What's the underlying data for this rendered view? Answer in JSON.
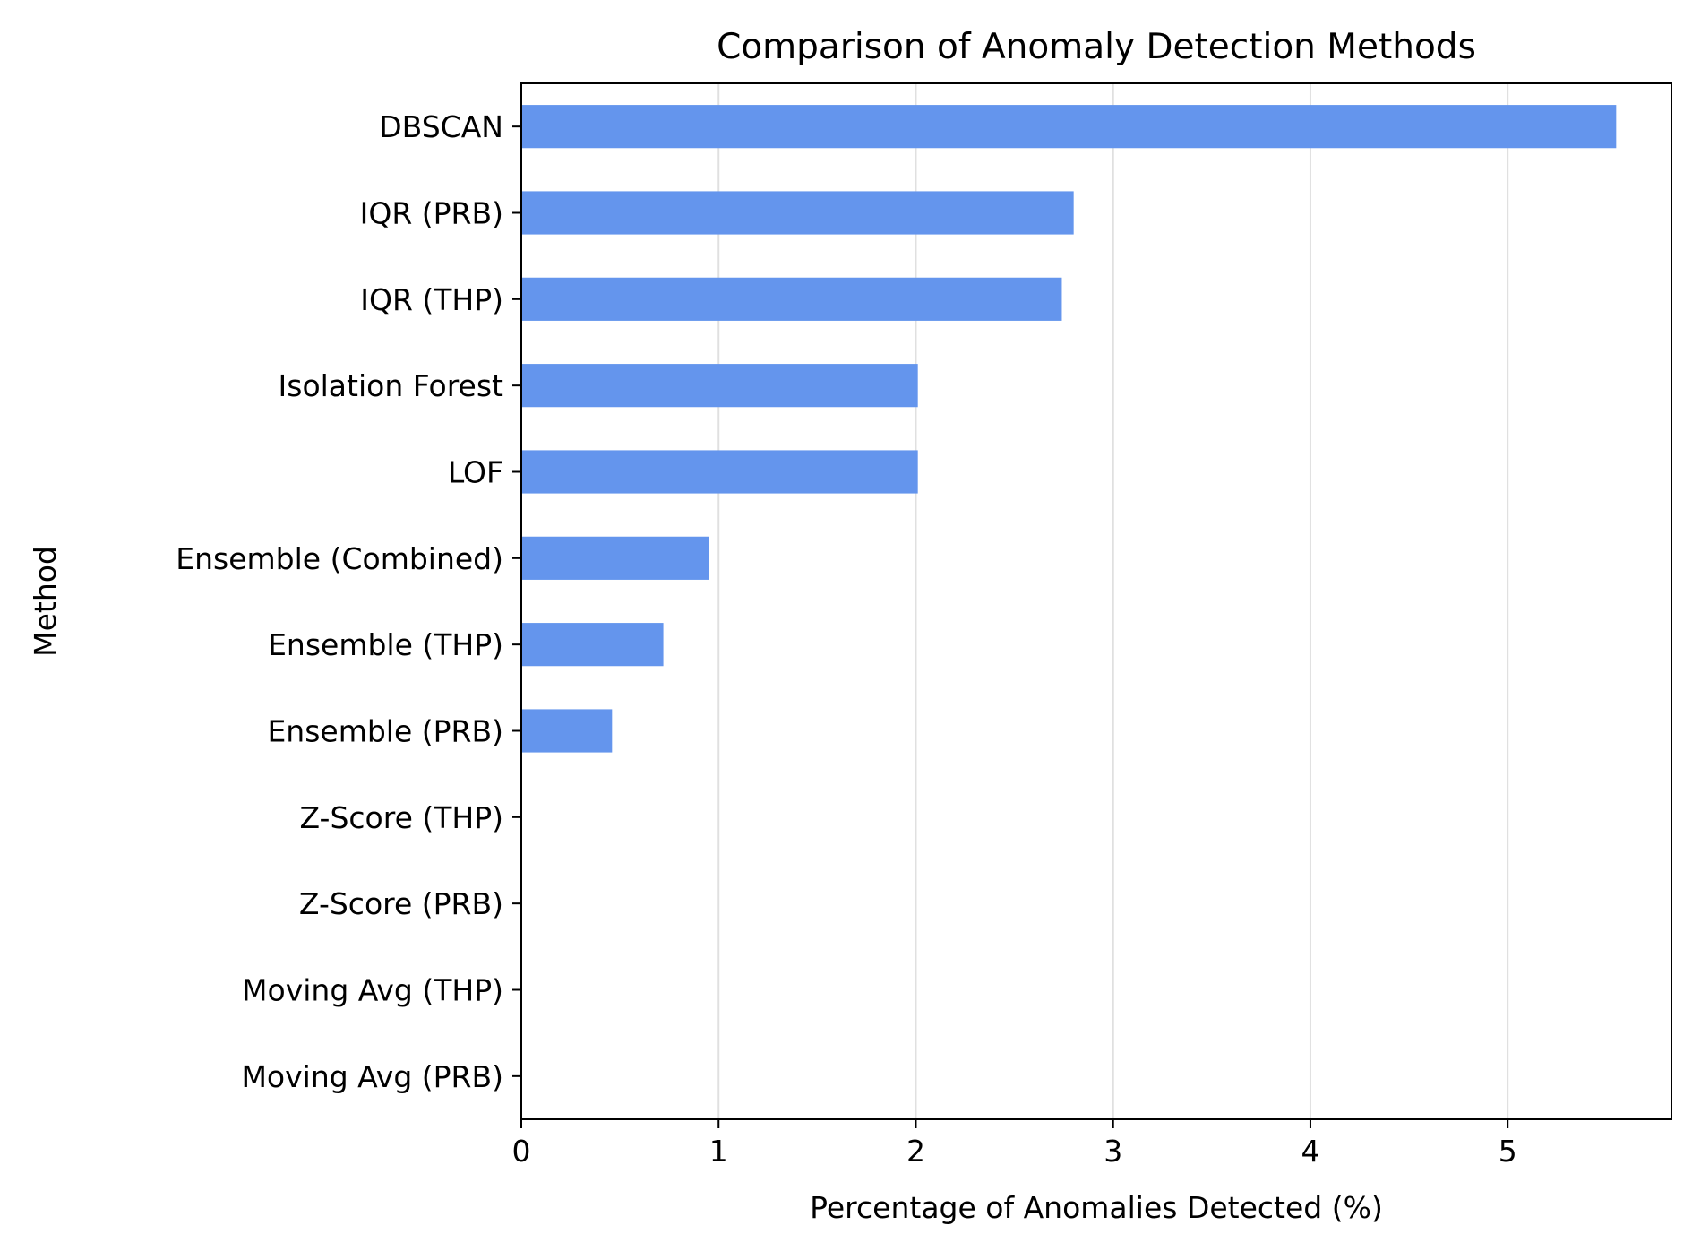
{
  "chart_data": {
    "type": "bar",
    "orientation": "horizontal",
    "title": "Comparison of Anomaly Detection Methods",
    "xlabel": "Percentage of Anomalies Detected (%)",
    "ylabel": "Method",
    "categories": [
      "DBSCAN",
      "IQR (PRB)",
      "IQR (THP)",
      "Isolation Forest",
      "LOF",
      "Ensemble (Combined)",
      "Ensemble (THP)",
      "Ensemble (PRB)",
      "Z-Score (THP)",
      "Z-Score (PRB)",
      "Moving Avg (THP)",
      "Moving Avg (PRB)"
    ],
    "values": [
      5.55,
      2.8,
      2.74,
      2.01,
      2.01,
      0.95,
      0.72,
      0.46,
      0,
      0,
      0,
      0
    ],
    "xlim": [
      0,
      5.83
    ],
    "xticks": [
      0,
      1,
      2,
      3,
      4,
      5
    ],
    "grid": "vertical",
    "bar_color": "#6495ED",
    "grid_color": "#e0e0e0"
  }
}
